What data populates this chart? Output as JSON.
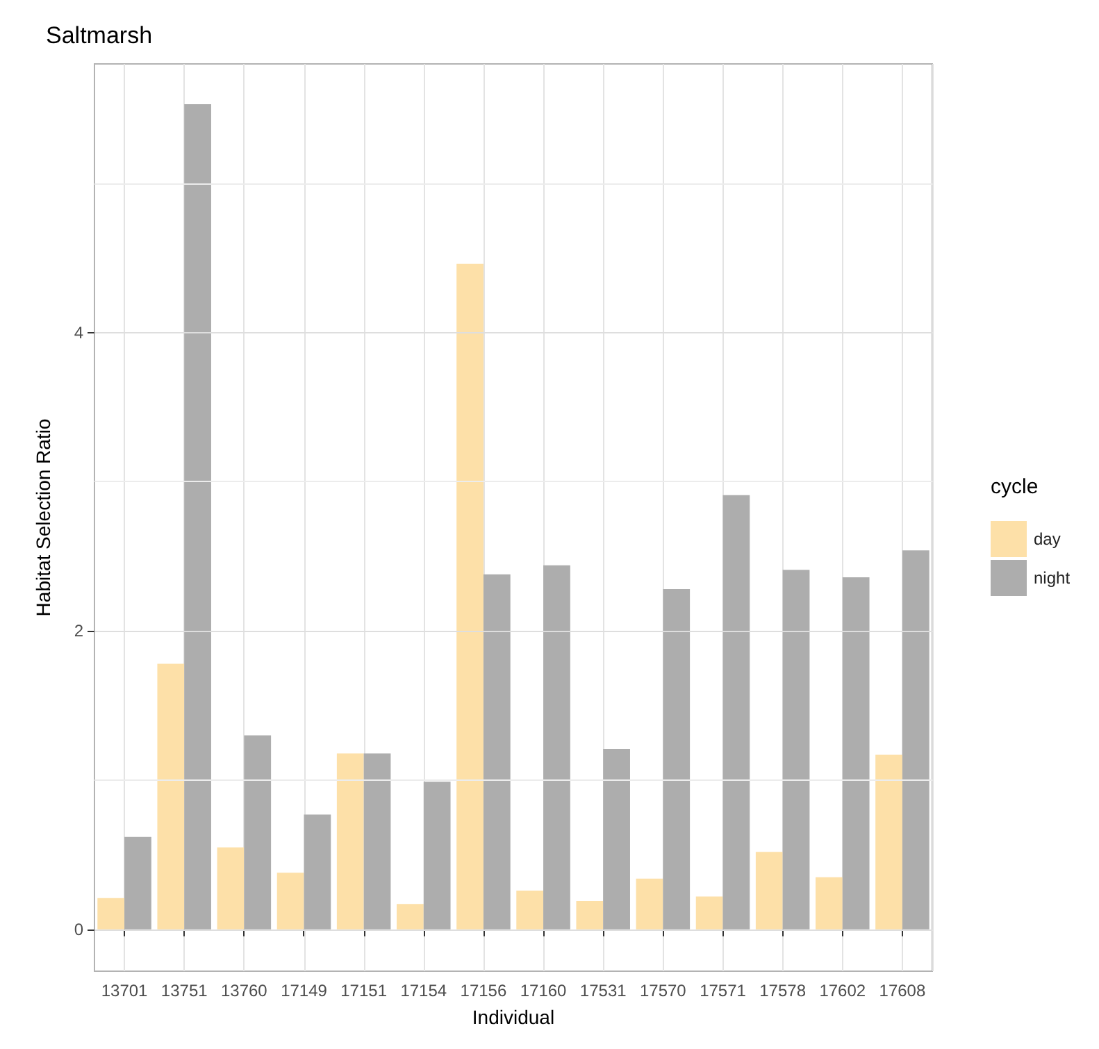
{
  "chart_data": {
    "type": "bar",
    "title": "Saltmarsh",
    "xlabel": "Individual",
    "ylabel": "Habitat Selection Ratio",
    "legend_title": "cycle",
    "categories": [
      "13701",
      "13751",
      "13760",
      "17149",
      "17151",
      "17154",
      "17156",
      "17160",
      "17531",
      "17570",
      "17571",
      "17578",
      "17602",
      "17608"
    ],
    "series": [
      {
        "name": "day",
        "color": "#fde0a8",
        "values": [
          0.21,
          1.78,
          0.55,
          0.38,
          1.18,
          0.17,
          4.46,
          0.26,
          0.19,
          0.34,
          0.22,
          0.52,
          0.35,
          1.17
        ]
      },
      {
        "name": "night",
        "color": "#adadad",
        "values": [
          0.62,
          5.53,
          1.3,
          0.77,
          1.18,
          0.99,
          2.38,
          2.44,
          1.21,
          2.28,
          2.91,
          2.41,
          2.36,
          2.54
        ]
      }
    ],
    "ylim": [
      -0.28,
      5.8
    ],
    "yticks": [
      0,
      2,
      4
    ],
    "grid": true,
    "legend": "right"
  }
}
